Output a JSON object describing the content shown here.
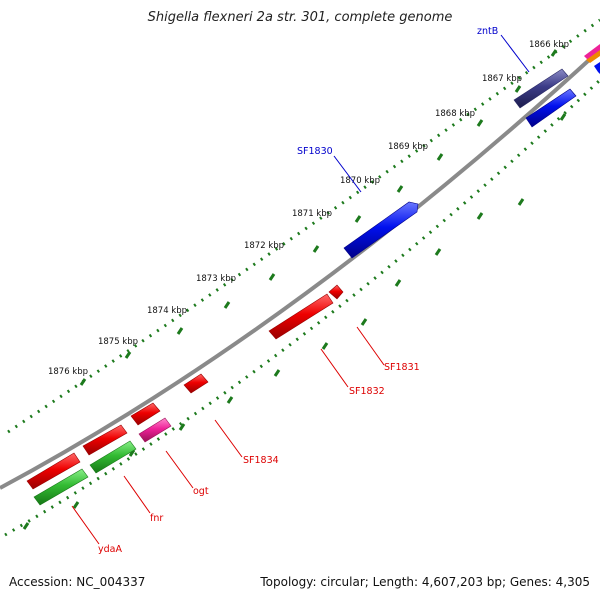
{
  "title": "Shigella flexneri 2a str. 301, complete genome",
  "footer": {
    "accession": "Accession: NC_004337",
    "topology": "Topology: circular; Length: 4,607,203 bp; Genes: 4,305"
  },
  "colors": {
    "backbone": "#7a7a7a",
    "ticks": "#1d7a1d",
    "forward_label": "#0000cc",
    "reverse_label": "#dd0000",
    "red": "#ee0000",
    "blue": "#0010ee",
    "navy": "#3c3c88",
    "green": "#33bb33",
    "pink": "#ee2299"
  },
  "scale_labels": [
    "1866 kbp",
    "1867 kbp",
    "1868 kbp",
    "1869 kbp",
    "1870 kbp",
    "1871 kbp",
    "1872 kbp",
    "1873 kbp",
    "1874 kbp",
    "1875 kbp",
    "1876 kbp"
  ],
  "gene_labels": [
    {
      "id": "zntB",
      "text": "zntB",
      "strand": "forward"
    },
    {
      "id": "SF1830",
      "text": "SF1830",
      "strand": "forward"
    },
    {
      "id": "SF1831",
      "text": "SF1831",
      "strand": "reverse"
    },
    {
      "id": "SF1832",
      "text": "SF1832",
      "strand": "reverse"
    },
    {
      "id": "SF1834",
      "text": "SF1834",
      "strand": "reverse"
    },
    {
      "id": "ogt",
      "text": "ogt",
      "strand": "reverse"
    },
    {
      "id": "fnr",
      "text": "fnr",
      "strand": "reverse"
    },
    {
      "id": "ydaA",
      "text": "ydaA",
      "strand": "reverse"
    }
  ]
}
